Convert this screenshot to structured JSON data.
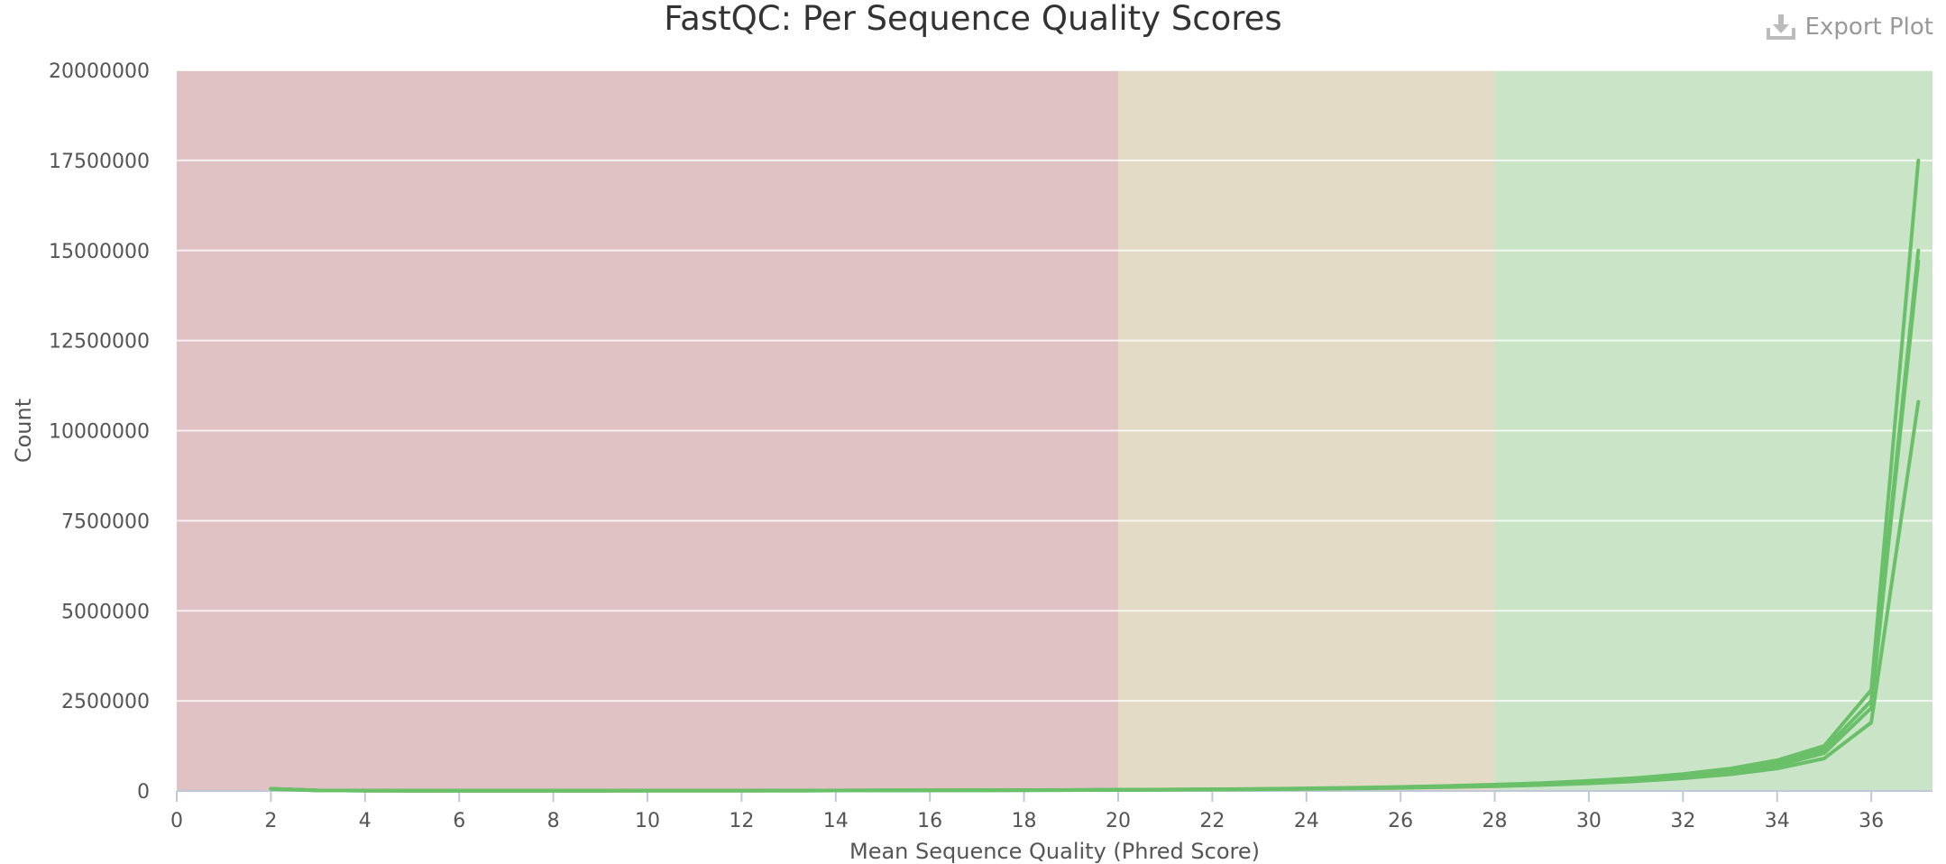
{
  "export": {
    "label": "Export Plot",
    "icon": "download-icon"
  },
  "chart_data": {
    "type": "line",
    "title": "FastQC: Per Sequence Quality Scores",
    "xlabel": "Mean Sequence Quality (Phred Score)",
    "ylabel": "Count",
    "xlim": [
      0,
      37.3
    ],
    "ylim": [
      0,
      20000000
    ],
    "xticks": [
      0,
      2,
      4,
      6,
      8,
      10,
      12,
      14,
      16,
      18,
      20,
      22,
      24,
      26,
      28,
      30,
      32,
      34,
      36
    ],
    "yticks": [
      0,
      2500000,
      5000000,
      7500000,
      10000000,
      12500000,
      15000000,
      17500000,
      20000000
    ],
    "grid": true,
    "bands": [
      {
        "from": 0,
        "to": 20,
        "color": "#e0c2c5"
      },
      {
        "from": 20,
        "to": 28,
        "color": "#e3dbc6"
      },
      {
        "from": 28,
        "to": 37.3,
        "color": "#c9e4c7"
      }
    ],
    "line_color": "#6abf69",
    "x": [
      2,
      3,
      4,
      5,
      6,
      7,
      8,
      9,
      10,
      11,
      12,
      13,
      14,
      15,
      16,
      17,
      18,
      19,
      20,
      21,
      22,
      23,
      24,
      25,
      26,
      27,
      28,
      29,
      30,
      31,
      32,
      33,
      34,
      35,
      36,
      37
    ],
    "series": [
      {
        "values": [
          60000,
          15000,
          10000,
          8000,
          8000,
          8000,
          8000,
          8000,
          9000,
          9000,
          10000,
          11000,
          12000,
          14000,
          16000,
          18000,
          20000,
          23000,
          27000,
          32000,
          38000,
          45000,
          55000,
          68000,
          85000,
          105000,
          130000,
          165000,
          210000,
          270000,
          350000,
          460000,
          620000,
          900000,
          1900000,
          10800000
        ]
      },
      {
        "values": [
          55000,
          14000,
          10000,
          8000,
          8000,
          8000,
          8000,
          8000,
          9000,
          9000,
          10000,
          11000,
          12000,
          14000,
          16000,
          19000,
          22000,
          25000,
          30000,
          35000,
          42000,
          50000,
          62000,
          77000,
          95000,
          118000,
          145000,
          185000,
          235000,
          300000,
          390000,
          510000,
          700000,
          1050000,
          2300000,
          14700000
        ]
      },
      {
        "values": [
          58000,
          15000,
          10000,
          8000,
          8000,
          8000,
          8000,
          8000,
          9000,
          9000,
          10000,
          11000,
          12000,
          14000,
          17000,
          19000,
          22000,
          26000,
          31000,
          37000,
          44000,
          53000,
          65000,
          80000,
          100000,
          125000,
          155000,
          195000,
          250000,
          320000,
          420000,
          550000,
          760000,
          1150000,
          2500000,
          15000000
        ]
      },
      {
        "values": [
          62000,
          16000,
          11000,
          9000,
          9000,
          9000,
          9000,
          9000,
          10000,
          10000,
          11000,
          12000,
          13000,
          15000,
          18000,
          21000,
          24000,
          28000,
          34000,
          40000,
          48000,
          58000,
          72000,
          90000,
          112000,
          140000,
          175000,
          220000,
          280000,
          360000,
          470000,
          620000,
          850000,
          1250000,
          2800000,
          17500000
        ]
      }
    ]
  }
}
